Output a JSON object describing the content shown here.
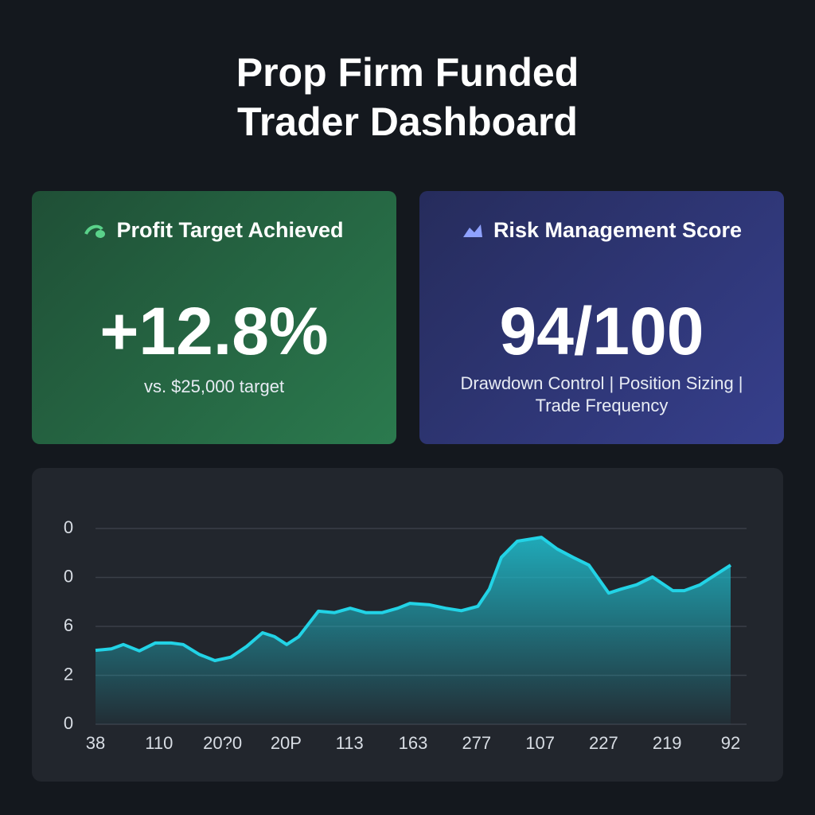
{
  "header": {
    "title": "Prop Firm Funded Trader Dashboard"
  },
  "cards": [
    {
      "title": "Profit Target Achieved",
      "value": "+12.8%",
      "subtitle": "vs. $25,000 target"
    },
    {
      "title": "Risk Management Score",
      "value": "94/100",
      "subtitle": "Drawdown Control | Position Sizing | Trade Frequency"
    }
  ],
  "chart_data": {
    "type": "area",
    "color": "#22d3e6",
    "grid": true,
    "x": [
      0,
      0.25,
      0.44,
      0.69,
      0.94,
      1.19,
      1.38,
      1.63,
      1.88,
      2.13,
      2.38,
      2.63,
      2.82,
      3.01,
      3.2,
      3.51,
      3.76,
      4.01,
      4.26,
      4.51,
      4.76,
      4.95,
      5.26,
      5.51,
      5.76,
      6.02,
      6.2,
      6.39,
      6.64,
      7.02,
      7.27,
      7.52,
      7.77,
      8.08,
      8.27,
      8.52,
      8.77,
      9.09,
      9.27,
      9.52,
      9.77,
      10
    ],
    "values": [
      1.51,
      1.54,
      1.63,
      1.5,
      1.66,
      1.66,
      1.63,
      1.43,
      1.3,
      1.37,
      1.59,
      1.87,
      1.79,
      1.63,
      1.79,
      2.31,
      2.28,
      2.37,
      2.28,
      2.28,
      2.37,
      2.47,
      2.44,
      2.37,
      2.32,
      2.41,
      2.76,
      3.41,
      3.74,
      3.82,
      3.58,
      3.41,
      3.25,
      2.68,
      2.76,
      2.85,
      3.01,
      2.73,
      2.73,
      2.85,
      3.06,
      3.25
    ],
    "xlim": [
      0,
      10
    ],
    "xticks": [
      {
        "value": 0,
        "label": "38"
      },
      {
        "value": 1,
        "label": "110"
      },
      {
        "value": 2,
        "label": "20?0"
      },
      {
        "value": 3,
        "label": "20P"
      },
      {
        "value": 4,
        "label": "113"
      },
      {
        "value": 5,
        "label": "163"
      },
      {
        "value": 6,
        "label": "277"
      },
      {
        "value": 7,
        "label": "107"
      },
      {
        "value": 8,
        "label": "227"
      },
      {
        "value": 9,
        "label": "219"
      },
      {
        "value": 10,
        "label": "92"
      }
    ],
    "ylim": [
      0,
      4
    ],
    "yticks": [
      0,
      {
        "value": 1,
        "label": "2"
      },
      {
        "value": 2,
        "label": "6"
      },
      {
        "value": 3,
        "label": "0"
      },
      {
        "value": 4,
        "label": "0"
      }
    ]
  }
}
